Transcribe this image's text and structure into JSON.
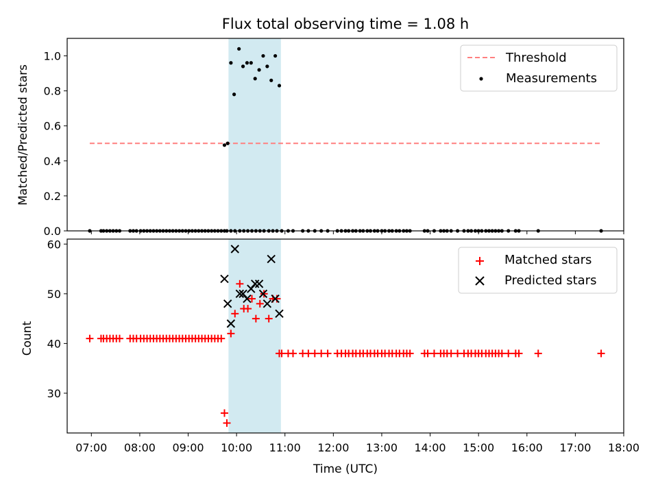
{
  "chart_data": [
    {
      "type": "scatter",
      "title": "Flux total observing time = 1.08 h",
      "xlabel": "",
      "ylabel": "Matched/Predicted stars",
      "xlim": [
        "06:30",
        "18:00"
      ],
      "ylim": [
        0.0,
        1.1
      ],
      "yticks": [
        "0.0",
        "0.2",
        "0.4",
        "0.6",
        "0.8",
        "1.0"
      ],
      "grid": false,
      "legend_position": "top-right",
      "shaded_interval": {
        "start": "09:50",
        "end": "10:55",
        "color": "#add8e6"
      },
      "threshold": {
        "name": "Threshold",
        "value": 0.5,
        "x_start": "06:58",
        "x_end": "17:33",
        "color": "#ff7f7f",
        "style": "dashed"
      },
      "series": [
        {
          "name": "Measurements",
          "color": "#000000",
          "marker": "dot",
          "x": [
            "06:58",
            "07:12",
            "07:15",
            "07:19",
            "07:23",
            "07:27",
            "07:31",
            "07:35",
            "07:48",
            "07:52",
            "07:56",
            "08:01",
            "08:05",
            "08:09",
            "08:13",
            "08:17",
            "08:21",
            "08:25",
            "08:29",
            "08:33",
            "08:37",
            "08:41",
            "08:45",
            "08:49",
            "08:53",
            "08:57",
            "09:01",
            "09:05",
            "09:09",
            "09:13",
            "09:17",
            "09:21",
            "09:25",
            "09:29",
            "09:33",
            "09:37",
            "09:41",
            "09:45",
            "09:48",
            "09:53",
            "09:58",
            "10:04",
            "10:09",
            "10:14",
            "10:19",
            "10:24",
            "10:29",
            "10:34",
            "10:40",
            "10:45",
            "10:50",
            "10:56",
            "11:04",
            "11:10",
            "11:22",
            "11:29",
            "11:37",
            "11:45",
            "11:53",
            "12:05",
            "12:10",
            "12:15",
            "12:19",
            "12:24",
            "12:28",
            "12:33",
            "12:37",
            "12:42",
            "12:46",
            "12:51",
            "12:55",
            "13:00",
            "13:04",
            "13:09",
            "13:13",
            "13:18",
            "13:22",
            "13:27",
            "13:31",
            "13:35",
            "13:53",
            "13:57",
            "14:05",
            "14:13",
            "14:17",
            "14:21",
            "14:26",
            "14:34",
            "14:42",
            "14:47",
            "14:51",
            "14:56",
            "15:00",
            "15:04",
            "15:09",
            "15:13",
            "15:17",
            "15:21",
            "15:25",
            "15:29",
            "15:37",
            "15:46",
            "15:50",
            "16:14",
            "17:32"
          ],
          "y": [
            0,
            0,
            0,
            0,
            0,
            0,
            0,
            0,
            0,
            0,
            0,
            0,
            0,
            0,
            0,
            0,
            0,
            0,
            0,
            0,
            0,
            0,
            0,
            0,
            0,
            0,
            0,
            0,
            0,
            0,
            0,
            0,
            0,
            0,
            0,
            0,
            0,
            0,
            0,
            0,
            0,
            0,
            0,
            0,
            0,
            0,
            0,
            0,
            0,
            0,
            0,
            0,
            0,
            0,
            0,
            0,
            0,
            0,
            0,
            0,
            0,
            0,
            0,
            0,
            0,
            0,
            0,
            0,
            0,
            0,
            0,
            0,
            0,
            0,
            0,
            0,
            0,
            0,
            0,
            0,
            0,
            0,
            0,
            0,
            0,
            0,
            0,
            0,
            0,
            0,
            0,
            0,
            0,
            0,
            0,
            0,
            0,
            0,
            0,
            0,
            0,
            0,
            0,
            0,
            0
          ]
        },
        {
          "name": "Measurements",
          "color": "#000000",
          "marker": "dot",
          "x": [
            "09:45",
            "09:49",
            "09:53",
            "09:57",
            "10:03",
            "10:08",
            "10:13",
            "10:18",
            "10:23",
            "10:28",
            "10:33",
            "10:38",
            "10:43",
            "10:48",
            "10:53"
          ],
          "y": [
            0.49,
            0.5,
            0.96,
            0.78,
            1.04,
            0.94,
            0.96,
            0.96,
            0.87,
            0.92,
            1.0,
            0.94,
            0.86,
            1.0,
            0.83
          ]
        }
      ],
      "legend": [
        "Threshold",
        "Measurements"
      ]
    },
    {
      "type": "scatter",
      "title": "",
      "xlabel": "Time (UTC)",
      "ylabel": "Count",
      "xlim": [
        "06:30",
        "18:00"
      ],
      "ylim": [
        22,
        61
      ],
      "xticks": [
        "07:00",
        "08:00",
        "09:00",
        "10:00",
        "11:00",
        "12:00",
        "13:00",
        "14:00",
        "15:00",
        "16:00",
        "17:00",
        "18:00"
      ],
      "yticks": [
        "30",
        "40",
        "50",
        "60"
      ],
      "grid": false,
      "legend_position": "top-right",
      "shaded_interval": {
        "start": "09:50",
        "end": "10:55",
        "color": "#add8e6"
      },
      "series": [
        {
          "name": "Matched stars",
          "color": "#ff0000",
          "marker": "plus",
          "x": [
            "06:58",
            "07:12",
            "07:15",
            "07:19",
            "07:23",
            "07:27",
            "07:31",
            "07:35",
            "07:48",
            "07:52",
            "07:56",
            "08:01",
            "08:05",
            "08:09",
            "08:13",
            "08:17",
            "08:21",
            "08:25",
            "08:29",
            "08:33",
            "08:37",
            "08:41",
            "08:45",
            "08:49",
            "08:53",
            "08:57",
            "09:01",
            "09:05",
            "09:09",
            "09:13",
            "09:17",
            "09:21",
            "09:25",
            "09:29",
            "09:33",
            "09:37",
            "09:41",
            "09:45",
            "09:48",
            "09:53",
            "09:58",
            "10:04",
            "10:09",
            "10:14",
            "10:19",
            "10:24",
            "10:29",
            "10:34",
            "10:40",
            "10:45",
            "10:50",
            "10:53",
            "10:56",
            "11:04",
            "11:10",
            "11:22",
            "11:29",
            "11:37",
            "11:45",
            "11:53",
            "12:05",
            "12:10",
            "12:15",
            "12:19",
            "12:24",
            "12:28",
            "12:33",
            "12:37",
            "12:42",
            "12:46",
            "12:51",
            "12:55",
            "13:00",
            "13:04",
            "13:09",
            "13:13",
            "13:18",
            "13:22",
            "13:27",
            "13:31",
            "13:35",
            "13:53",
            "13:57",
            "14:05",
            "14:13",
            "14:17",
            "14:21",
            "14:26",
            "14:34",
            "14:42",
            "14:47",
            "14:51",
            "14:56",
            "15:00",
            "15:04",
            "15:09",
            "15:13",
            "15:17",
            "15:21",
            "15:25",
            "15:29",
            "15:37",
            "15:46",
            "15:50",
            "16:14",
            "17:32"
          ],
          "y": [
            41,
            41,
            41,
            41,
            41,
            41,
            41,
            41,
            41,
            41,
            41,
            41,
            41,
            41,
            41,
            41,
            41,
            41,
            41,
            41,
            41,
            41,
            41,
            41,
            41,
            41,
            41,
            41,
            41,
            41,
            41,
            41,
            41,
            41,
            41,
            41,
            41,
            26,
            24,
            42,
            46,
            52,
            47,
            47,
            49,
            45,
            48,
            50,
            45,
            49,
            49,
            38,
            38,
            38,
            38,
            38,
            38,
            38,
            38,
            38,
            38,
            38,
            38,
            38,
            38,
            38,
            38,
            38,
            38,
            38,
            38,
            38,
            38,
            38,
            38,
            38,
            38,
            38,
            38,
            38,
            38,
            38,
            38,
            38,
            38,
            38,
            38,
            38,
            38,
            38,
            38,
            38,
            38,
            38,
            38,
            38,
            38,
            38,
            38,
            38,
            38,
            38,
            38,
            38,
            38,
            38
          ]
        },
        {
          "name": "Predicted stars",
          "color": "#000000",
          "marker": "x",
          "x": [
            "09:45",
            "09:49",
            "09:53",
            "09:58",
            "10:04",
            "10:08",
            "10:13",
            "10:18",
            "10:23",
            "10:28",
            "10:33",
            "10:38",
            "10:43",
            "10:48",
            "10:53"
          ],
          "y": [
            53,
            48,
            44,
            59,
            50,
            50,
            49,
            51,
            52,
            52,
            50,
            48,
            57,
            49,
            46
          ]
        }
      ],
      "legend": [
        "Matched stars",
        "Predicted stars"
      ]
    }
  ]
}
